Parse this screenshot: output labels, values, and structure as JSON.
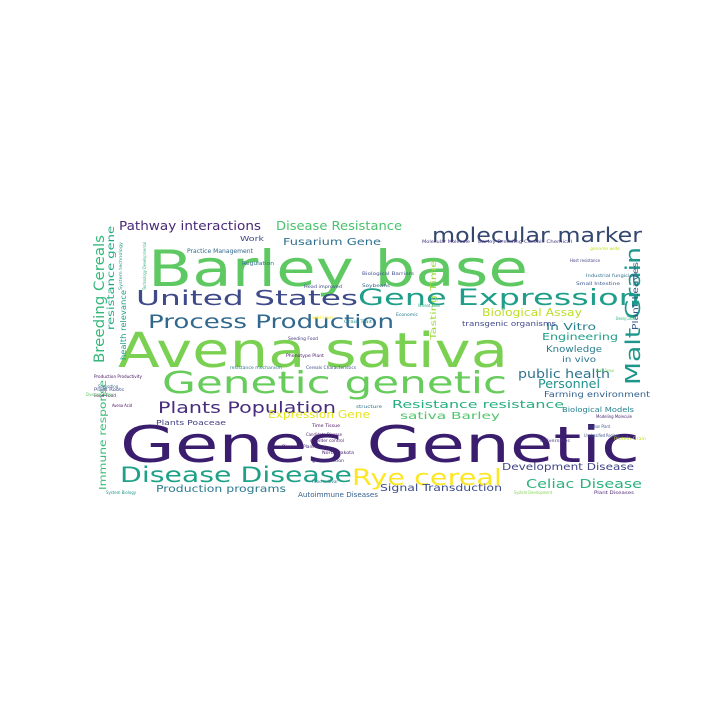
{
  "wordcloud": {
    "words": [
      {
        "text": "Genes Genetic",
        "color": "#3b1d6e"
      },
      {
        "text": "Avena sativa",
        "color": "#7ad151"
      },
      {
        "text": "Barley base",
        "color": "#5ec962"
      },
      {
        "text": "Genetic genetic",
        "color": "#67cc5c"
      },
      {
        "text": "Gene Expression",
        "color": "#1f9e89"
      },
      {
        "text": "molecular marker",
        "color": "#34476f"
      },
      {
        "text": "United States",
        "color": "#3e4a89"
      },
      {
        "text": "Process Production",
        "color": "#31688e"
      },
      {
        "text": "Disease Disease",
        "color": "#1fa187"
      },
      {
        "text": "Rye cereal",
        "color": "#fde725"
      },
      {
        "text": "Malt Grain",
        "color": "#1f968b"
      },
      {
        "text": "Plants Population",
        "color": "#472d7b"
      },
      {
        "text": "Breeding Cereals",
        "color": "#35b779"
      },
      {
        "text": "Pathway interactions",
        "color": "#482878"
      },
      {
        "text": "Disease Resistance",
        "color": "#4ac16d"
      },
      {
        "text": "Fusarium Gene",
        "color": "#2d708e"
      },
      {
        "text": "Biological Assay",
        "color": "#bddf26"
      },
      {
        "text": "Resistance resistance",
        "color": "#26ad81"
      },
      {
        "text": "public health",
        "color": "#2c728e"
      },
      {
        "text": "Personnel",
        "color": "#21918c"
      },
      {
        "text": "Development Disease",
        "color": "#414487"
      },
      {
        "text": "Celiac Disease",
        "color": "#2db27d"
      },
      {
        "text": "Signal Transduction",
        "color": "#3e4c8a"
      },
      {
        "text": "Production programs",
        "color": "#2a788e"
      },
      {
        "text": "Immune response",
        "color": "#3aba76"
      },
      {
        "text": "resistance gene",
        "color": "#22a884"
      },
      {
        "text": "health relevance",
        "color": "#1e9c89"
      },
      {
        "text": "Engineering",
        "color": "#1fa088"
      },
      {
        "text": "Knowledge",
        "color": "#287c8e"
      },
      {
        "text": "In Vitro",
        "color": "#277f8e"
      },
      {
        "text": "in vivo",
        "color": "#2a768e"
      },
      {
        "text": "sativa Barley",
        "color": "#50c46a"
      },
      {
        "text": "Farming environment",
        "color": "#33628d"
      },
      {
        "text": "Plant Leaves",
        "color": "#3b528b"
      },
      {
        "text": "Tasting Time",
        "color": "#9fda3a"
      },
      {
        "text": "Expression Gene",
        "color": "#e5e419"
      },
      {
        "text": "transgenic organisms",
        "color": "#3f4889"
      },
      {
        "text": "Autoimmune Diseases",
        "color": "#355f8d"
      },
      {
        "text": "Plants Poaceae",
        "color": "#433e85"
      },
      {
        "text": "Biological Models",
        "color": "#26828e"
      },
      {
        "text": "Work",
        "color": "#404688"
      },
      {
        "text": "Practice Management",
        "color": "#31678e"
      },
      {
        "text": "Regulation",
        "color": "#2f6c8e"
      },
      {
        "text": "Head improved",
        "color": "#3e4989"
      },
      {
        "text": "Biological Barriers",
        "color": "#3d4d8a"
      },
      {
        "text": "Soybeans",
        "color": "#365d8d"
      },
      {
        "text": "Industrial fungicide",
        "color": "#2e6e8e"
      },
      {
        "text": "Small Intestine",
        "color": "#39568c"
      },
      {
        "text": "Host resistance",
        "color": "#424086"
      },
      {
        "text": "Barley Breeding Cereals Chemical",
        "color": "#443983"
      },
      {
        "text": "Molecular Molecule",
        "color": "#46327e"
      },
      {
        "text": "genome wide",
        "color": "#c2df23"
      },
      {
        "text": "System technology",
        "color": "#1f9a8a"
      },
      {
        "text": "Technology Developmental",
        "color": "#2eb37c"
      },
      {
        "text": "Seeding Food",
        "color": "#453781"
      },
      {
        "text": "Phenotype Plant",
        "color": "#481a6c"
      },
      {
        "text": "Cereals Characteristics",
        "color": "#3c4f8a"
      },
      {
        "text": "resistance mechanism",
        "color": "#2b758e"
      },
      {
        "text": "Production Productivity",
        "color": "#460b5e"
      },
      {
        "text": "Plant Roots",
        "color": "#3f4788"
      },
      {
        "text": "Food Food",
        "color": "#440f62"
      },
      {
        "text": "Avena Acid",
        "color": "#46085c"
      },
      {
        "text": "Time Tissue",
        "color": "#471164"
      },
      {
        "text": "Candidate Disease",
        "color": "#481769"
      },
      {
        "text": "disorder control",
        "color": "#48186a"
      },
      {
        "text": "Diseases Plant",
        "color": "#482173"
      },
      {
        "text": "North Dakota",
        "color": "#482475"
      },
      {
        "text": "gene function",
        "color": "#46307e"
      },
      {
        "text": "Universities",
        "color": "#453581"
      },
      {
        "text": "Unclassified Regions",
        "color": "#3a538b"
      },
      {
        "text": "Modeling Molecule",
        "color": "#482576"
      },
      {
        "text": "Plant Diseases",
        "color": "#481f70"
      },
      {
        "text": "System Biology",
        "color": "#1f958b"
      },
      {
        "text": "System Development",
        "color": "#7fd34e"
      },
      {
        "text": "Food cultivar",
        "color": "#2a778e"
      },
      {
        "text": "Divergent Region",
        "color": "#5cc863"
      },
      {
        "text": "Supporting",
        "color": "#35608d"
      },
      {
        "text": "Economic",
        "color": "#297b8e"
      },
      {
        "text": "Wheat Loss",
        "color": "#21a685"
      },
      {
        "text": "Grain Trait",
        "color": "#21908d"
      },
      {
        "text": "wild Lines",
        "color": "#fde725"
      },
      {
        "text": "Brewing Cultivar",
        "color": "#2fb47c"
      },
      {
        "text": "structure",
        "color": "#2e6f8e"
      },
      {
        "text": "Human Plant",
        "color": "#39558c"
      },
      {
        "text": "Protein Grain",
        "color": "#bddf26"
      },
      {
        "text": "Grain Genus",
        "color": "#6ece58"
      }
    ]
  }
}
